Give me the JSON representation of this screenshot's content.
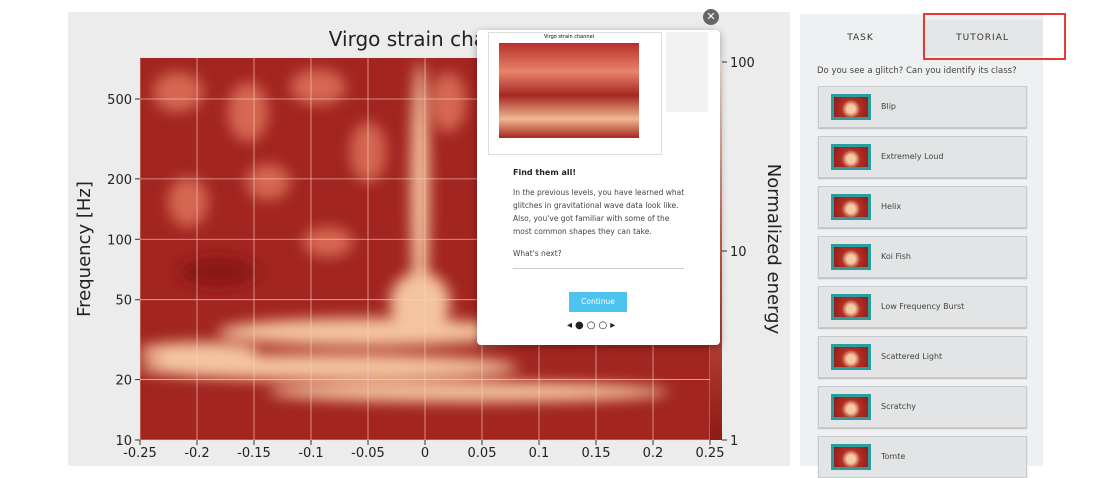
{
  "plot": {
    "title": "Virgo strain channel",
    "ylabel": "Frequency [Hz]",
    "log_y": true,
    "ylim": [
      10,
      800
    ],
    "yticks": [
      10,
      20,
      50,
      100,
      200,
      500
    ],
    "xlim": [
      -0.25,
      0.25
    ],
    "xticks": [
      -0.25,
      -0.2,
      -0.15,
      -0.1,
      -0.05,
      0,
      0.05,
      0.1,
      0.15,
      0.2,
      0.25
    ],
    "grid": true,
    "colorbar": {
      "label": "Normalized energy",
      "log": true,
      "lim": [
        1,
        100
      ],
      "ticks": [
        1,
        10,
        100
      ]
    }
  },
  "tabs": [
    "TASK",
    "TUTORIAL"
  ],
  "question": "Do you see a glitch? Can you identify its class?",
  "choices": [
    "Blip",
    "Extremely Loud",
    "Helix",
    "Koi Fish",
    "Low Frequency Burst",
    "Scattered Light",
    "Scratchy",
    "Tomte"
  ],
  "modal": {
    "thumbnail_title": "Virgo strain channel",
    "heading": "Find them all!",
    "body": "In the previous levels, you have learned what glitches in gravitational wave data look like. Also, you've got familiar with some of the most common shapes they can take.",
    "prompt": "What's next?",
    "button": "Continue"
  }
}
